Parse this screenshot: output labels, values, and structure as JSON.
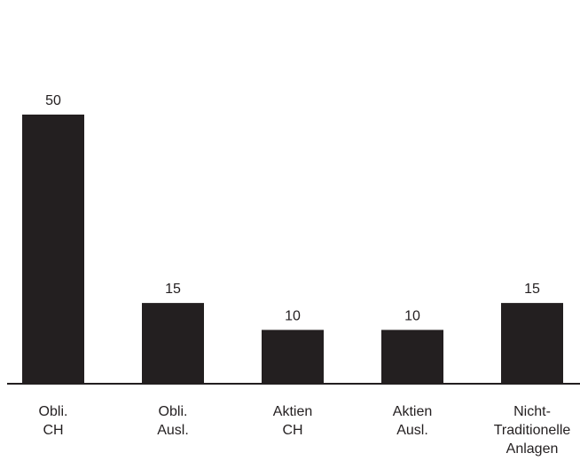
{
  "chart_data": {
    "type": "bar",
    "categories": [
      [
        "Obli.",
        "CH"
      ],
      [
        "Obli.",
        "Ausl."
      ],
      [
        "Aktien",
        "CH"
      ],
      [
        "Aktien",
        "Ausl."
      ],
      [
        "Nicht-",
        "Traditionelle",
        "Anlagen"
      ]
    ],
    "values": [
      50,
      15,
      10,
      10,
      15
    ],
    "value_labels": [
      "50",
      "15",
      "10",
      "10",
      "15"
    ],
    "ylim": [
      0,
      65
    ],
    "grid": false,
    "legend": "none",
    "bar_color": "#231f20",
    "axis_color": "#231f20",
    "text_color": "#231f20"
  }
}
